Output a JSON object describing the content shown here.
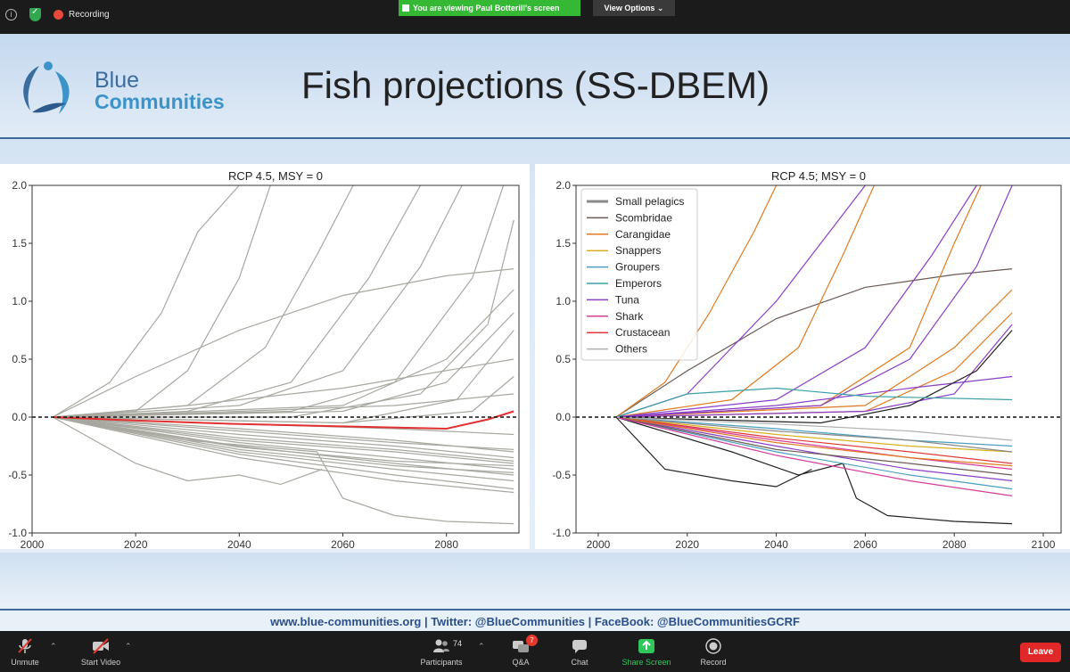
{
  "topbar": {
    "recording_label": "Recording",
    "viewing_banner": "You are viewing Paul Botterill's screen",
    "view_options": "View Options ⌄"
  },
  "slide": {
    "logo_line1": "Blue",
    "logo_line2": "Communities",
    "title": "Fish projections (SS-DBEM)",
    "footer": "www.blue-communities.org   |   Twitter: @BlueCommunities   |   FaceBook: @BlueCommunitiesGCRF"
  },
  "toolbar": {
    "unmute": "Unmute",
    "start_video": "Start Video",
    "participants": "Participants",
    "participants_count": "74",
    "qa": "Q&A",
    "qa_badge": "7",
    "chat": "Chat",
    "share_screen": "Share Screen",
    "record": "Record",
    "leave": "Leave"
  },
  "colors": {
    "grey_series": "#a8a8a0",
    "red_series": "#e23030",
    "share_green": "#2fc65a",
    "leave_red": "#e02828"
  },
  "chart_data": [
    {
      "type": "line",
      "title": "RCP 4.5, MSY = 0",
      "xlim": [
        2000,
        2094
      ],
      "ylim": [
        -1.0,
        2.0
      ],
      "xticks": [
        "2000",
        "2020",
        "2040",
        "2060",
        "2080"
      ],
      "yticks": [
        "2.0",
        "1.5",
        "1.0",
        "0.5",
        "0.0",
        "-0.5",
        "-1.0"
      ],
      "reference_line": 0.0,
      "series": [
        {
          "color": "#a8a8a0",
          "x": [
            2004,
            2020,
            2040,
            2060,
            2080,
            2093
          ],
          "y": [
            0,
            0.35,
            0.75,
            1.05,
            1.22,
            1.28
          ]
        },
        {
          "color": "#a8a8a0",
          "x": [
            2004,
            2015,
            2025,
            2032,
            2040
          ],
          "y": [
            0,
            0.3,
            0.9,
            1.6,
            2.0
          ]
        },
        {
          "color": "#a8a8a0",
          "x": [
            2004,
            2020,
            2030,
            2040,
            2046
          ],
          "y": [
            0,
            0.05,
            0.4,
            1.2,
            2.0
          ]
        },
        {
          "color": "#a8a8a0",
          "x": [
            2004,
            2030,
            2045,
            2055,
            2062
          ],
          "y": [
            0,
            0.1,
            0.6,
            1.4,
            2.0
          ]
        },
        {
          "color": "#a8a8a0",
          "x": [
            2004,
            2030,
            2050,
            2065,
            2075
          ],
          "y": [
            0,
            0.05,
            0.3,
            1.2,
            2.0
          ]
        },
        {
          "color": "#a8a8a0",
          "x": [
            2004,
            2040,
            2060,
            2075,
            2083
          ],
          "y": [
            0,
            0.1,
            0.4,
            1.3,
            2.0
          ]
        },
        {
          "color": "#a8a8a0",
          "x": [
            2004,
            2050,
            2070,
            2085,
            2091
          ],
          "y": [
            0,
            0.05,
            0.3,
            1.2,
            2.0
          ]
        },
        {
          "color": "#a8a8a0",
          "x": [
            2004,
            2050,
            2075,
            2088,
            2093
          ],
          "y": [
            0,
            0.0,
            0.2,
            0.8,
            1.7
          ]
        },
        {
          "color": "#a8a8a0",
          "x": [
            2004,
            2060,
            2080,
            2093
          ],
          "y": [
            0,
            0.1,
            0.5,
            1.1
          ]
        },
        {
          "color": "#a8a8a0",
          "x": [
            2004,
            2060,
            2080,
            2093
          ],
          "y": [
            0,
            0.05,
            0.3,
            0.9
          ]
        },
        {
          "color": "#a8a8a0",
          "x": [
            2004,
            2060,
            2082,
            2093
          ],
          "y": [
            0,
            -0.05,
            0.15,
            0.75
          ]
        },
        {
          "color": "#a8a8a0",
          "x": [
            2004,
            2060,
            2085,
            2093
          ],
          "y": [
            0,
            -0.05,
            0.05,
            0.35
          ]
        },
        {
          "color": "#a8a8a0",
          "x": [
            2004,
            2030,
            2060,
            2093
          ],
          "y": [
            0,
            0.1,
            0.25,
            0.5
          ]
        },
        {
          "color": "#a8a8a0",
          "x": [
            2004,
            2040,
            2070,
            2093
          ],
          "y": [
            0,
            0.05,
            0.1,
            0.2
          ]
        },
        {
          "color": "#a8a8a0",
          "x": [
            2004,
            2040,
            2070,
            2093
          ],
          "y": [
            0,
            -0.1,
            -0.2,
            -0.3
          ]
        },
        {
          "color": "#a8a8a0",
          "x": [
            2004,
            2040,
            2070,
            2093
          ],
          "y": [
            0,
            -0.15,
            -0.25,
            -0.35
          ]
        },
        {
          "color": "#a8a8a0",
          "x": [
            2004,
            2040,
            2070,
            2093
          ],
          "y": [
            0,
            -0.2,
            -0.3,
            -0.4
          ]
        },
        {
          "color": "#a8a8a0",
          "x": [
            2004,
            2040,
            2070,
            2093
          ],
          "y": [
            0,
            -0.22,
            -0.35,
            -0.45
          ]
        },
        {
          "color": "#a8a8a0",
          "x": [
            2004,
            2040,
            2070,
            2093
          ],
          "y": [
            0,
            -0.25,
            -0.4,
            -0.5
          ]
        },
        {
          "color": "#a8a8a0",
          "x": [
            2004,
            2040,
            2070,
            2093
          ],
          "y": [
            0,
            -0.3,
            -0.45,
            -0.55
          ]
        },
        {
          "color": "#a8a8a0",
          "x": [
            2004,
            2040,
            2070,
            2093
          ],
          "y": [
            0,
            -0.12,
            -0.22,
            -0.28
          ]
        },
        {
          "color": "#a8a8a0",
          "x": [
            2004,
            2040,
            2070,
            2093
          ],
          "y": [
            0,
            -0.18,
            -0.28,
            -0.38
          ]
        },
        {
          "color": "#a8a8a0",
          "x": [
            2004,
            2040,
            2070,
            2093
          ],
          "y": [
            0,
            -0.28,
            -0.42,
            -0.48
          ]
        },
        {
          "color": "#a8a8a0",
          "x": [
            2004,
            2040,
            2070,
            2093
          ],
          "y": [
            0,
            -0.32,
            -0.5,
            -0.62
          ]
        },
        {
          "color": "#a8a8a0",
          "x": [
            2004,
            2040,
            2070,
            2093
          ],
          "y": [
            0,
            -0.35,
            -0.55,
            -0.65
          ]
        },
        {
          "color": "#a8a8a0",
          "x": [
            2004,
            2020,
            2030,
            2040,
            2048,
            2056
          ],
          "y": [
            0,
            -0.4,
            -0.55,
            -0.5,
            -0.58,
            -0.45
          ]
        },
        {
          "color": "#a8a8a0",
          "x": [
            2004,
            2030,
            2055,
            2060,
            2070,
            2080,
            2093
          ],
          "y": [
            0,
            -0.2,
            -0.3,
            -0.7,
            -0.85,
            -0.9,
            -0.92
          ]
        },
        {
          "color": "#a8a8a0",
          "x": [
            2004,
            2040,
            2070,
            2093
          ],
          "y": [
            0,
            -0.06,
            -0.1,
            -0.15
          ]
        },
        {
          "color": "#a8a8a0",
          "x": [
            2004,
            2040,
            2070,
            2093
          ],
          "y": [
            0,
            -0.26,
            -0.38,
            -0.42
          ]
        },
        {
          "color": "#e23030",
          "x": [
            2004,
            2020,
            2040,
            2060,
            2080,
            2088,
            2093
          ],
          "y": [
            0,
            -0.03,
            -0.06,
            -0.08,
            -0.1,
            -0.02,
            0.05
          ]
        }
      ]
    },
    {
      "type": "line",
      "title": "RCP 4.5; MSY = 0",
      "xlim": [
        1995,
        2104
      ],
      "ylim": [
        -1.0,
        2.0
      ],
      "xticks": [
        "2000",
        "2020",
        "2040",
        "2060",
        "2080",
        "2100"
      ],
      "yticks": [
        "2.0",
        "1.5",
        "1.0",
        "0.5",
        "0.0",
        "-0.5",
        "-1.0"
      ],
      "reference_line": 0.0,
      "legend": {
        "position": "top-left",
        "entries": [
          {
            "name": "Small pelagics",
            "color": "#8a8a8a"
          },
          {
            "name": "Scombridae",
            "color": "#6b5a55"
          },
          {
            "name": "Carangidae",
            "color": "#e07a20"
          },
          {
            "name": "Snappers",
            "color": "#d8b020"
          },
          {
            "name": "Groupers",
            "color": "#4a9fc0"
          },
          {
            "name": "Emperors",
            "color": "#3aa0a8"
          },
          {
            "name": "Tuna",
            "color": "#8a3ec8"
          },
          {
            "name": "Shark",
            "color": "#d83c9a"
          },
          {
            "name": "Crustacean",
            "color": "#e03838"
          },
          {
            "name": "Others",
            "color": "#b0b0b0"
          }
        ]
      },
      "series": [
        {
          "color": "#6b5a55",
          "x": [
            2004,
            2020,
            2040,
            2060,
            2080,
            2093
          ],
          "y": [
            0,
            0.4,
            0.85,
            1.12,
            1.23,
            1.28
          ]
        },
        {
          "color": "#e07a20",
          "x": [
            2004,
            2015,
            2025,
            2035,
            2040
          ],
          "y": [
            0,
            0.3,
            0.9,
            1.6,
            2.0
          ]
        },
        {
          "color": "#e07a20",
          "x": [
            2004,
            2030,
            2045,
            2055,
            2062
          ],
          "y": [
            0,
            0.15,
            0.6,
            1.4,
            2.0
          ]
        },
        {
          "color": "#e07a20",
          "x": [
            2004,
            2050,
            2070,
            2080,
            2086
          ],
          "y": [
            0,
            0.1,
            0.6,
            1.5,
            2.0
          ]
        },
        {
          "color": "#e07a20",
          "x": [
            2004,
            2060,
            2080,
            2093
          ],
          "y": [
            0,
            0.1,
            0.6,
            1.1
          ]
        },
        {
          "color": "#e07a20",
          "x": [
            2004,
            2060,
            2080,
            2093
          ],
          "y": [
            0,
            0.05,
            0.4,
            0.9
          ]
        },
        {
          "color": "#8a3ec8",
          "x": [
            2004,
            2020,
            2030,
            2040,
            2050,
            2060
          ],
          "y": [
            0,
            0.2,
            0.6,
            1.0,
            1.5,
            2.0
          ]
        },
        {
          "color": "#8a3ec8",
          "x": [
            2004,
            2040,
            2060,
            2075,
            2085
          ],
          "y": [
            0,
            0.15,
            0.6,
            1.4,
            2.0
          ]
        },
        {
          "color": "#8a3ec8",
          "x": [
            2004,
            2050,
            2070,
            2085,
            2093
          ],
          "y": [
            0,
            0.1,
            0.5,
            1.3,
            2.0
          ]
        },
        {
          "color": "#8a3ec8",
          "x": [
            2004,
            2060,
            2080,
            2093
          ],
          "y": [
            0,
            0.05,
            0.2,
            0.8
          ]
        },
        {
          "color": "#8a3ec8",
          "x": [
            2004,
            2040,
            2070,
            2093
          ],
          "y": [
            0,
            0.1,
            0.25,
            0.35
          ]
        },
        {
          "color": "#222222",
          "x": [
            2004,
            2030,
            2045,
            2055,
            2058,
            2065,
            2080,
            2093
          ],
          "y": [
            0,
            -0.3,
            -0.5,
            -0.4,
            -0.7,
            -0.85,
            -0.9,
            -0.92
          ]
        },
        {
          "color": "#222222",
          "x": [
            2004,
            2050,
            2070,
            2085,
            2093
          ],
          "y": [
            0,
            -0.05,
            0.1,
            0.4,
            0.75
          ]
        },
        {
          "color": "#222222",
          "x": [
            2004,
            2015,
            2030,
            2040,
            2048
          ],
          "y": [
            0,
            -0.45,
            -0.55,
            -0.6,
            -0.45
          ]
        },
        {
          "color": "#3aa0a8",
          "x": [
            2004,
            2020,
            2040,
            2060,
            2093
          ],
          "y": [
            0,
            0.2,
            0.25,
            0.18,
            0.15
          ]
        },
        {
          "color": "#4a9fc0",
          "x": [
            2004,
            2040,
            2070,
            2093
          ],
          "y": [
            0,
            -0.1,
            -0.2,
            -0.25
          ]
        },
        {
          "color": "#d8b020",
          "x": [
            2004,
            2040,
            2070,
            2093
          ],
          "y": [
            0,
            -0.15,
            -0.25,
            -0.3
          ]
        },
        {
          "color": "#d83c9a",
          "x": [
            2004,
            2040,
            2070,
            2093
          ],
          "y": [
            0,
            -0.2,
            -0.35,
            -0.45
          ]
        },
        {
          "color": "#e03838",
          "x": [
            2004,
            2040,
            2070,
            2093
          ],
          "y": [
            0,
            -0.18,
            -0.3,
            -0.4
          ]
        },
        {
          "color": "#8a3ec8",
          "x": [
            2004,
            2040,
            2070,
            2093
          ],
          "y": [
            0,
            -0.25,
            -0.45,
            -0.55
          ]
        },
        {
          "color": "#4a9fc0",
          "x": [
            2004,
            2040,
            2070,
            2093
          ],
          "y": [
            0,
            -0.3,
            -0.5,
            -0.62
          ]
        },
        {
          "color": "#e07a20",
          "x": [
            2004,
            2040,
            2070,
            2093
          ],
          "y": [
            0,
            -0.22,
            -0.35,
            -0.42
          ]
        },
        {
          "color": "#8a8a8a",
          "x": [
            2004,
            2040,
            2070,
            2093
          ],
          "y": [
            0,
            -0.12,
            -0.2,
            -0.3
          ]
        },
        {
          "color": "#6b5a55",
          "x": [
            2004,
            2040,
            2070,
            2093
          ],
          "y": [
            0,
            -0.28,
            -0.4,
            -0.5
          ]
        },
        {
          "color": "#d83c9a",
          "x": [
            2004,
            2040,
            2070,
            2093
          ],
          "y": [
            0,
            -0.33,
            -0.55,
            -0.68
          ]
        },
        {
          "color": "#b0b0b0",
          "x": [
            2004,
            2040,
            2070,
            2093
          ],
          "y": [
            0,
            -0.06,
            -0.12,
            -0.2
          ]
        }
      ]
    }
  ]
}
